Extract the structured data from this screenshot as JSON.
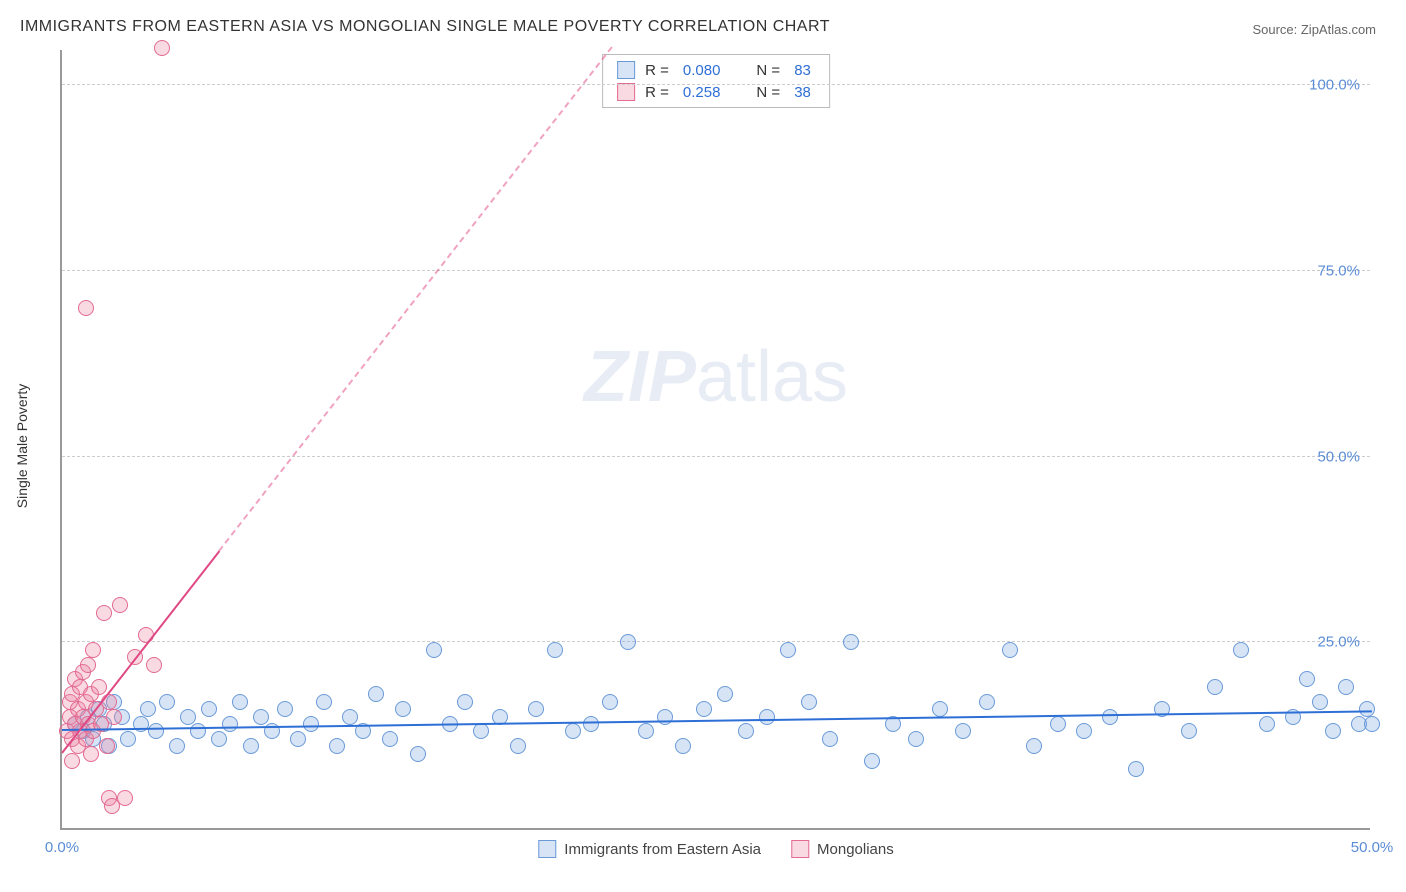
{
  "chart": {
    "type": "scatter",
    "title": "IMMIGRANTS FROM EASTERN ASIA VS MONGOLIAN SINGLE MALE POVERTY CORRELATION CHART",
    "source_label": "Source: ZipAtlas.com",
    "watermark": {
      "prefix": "ZIP",
      "suffix": "atlas"
    },
    "ylabel": "Single Male Poverty",
    "xlim": [
      0,
      50
    ],
    "ylim": [
      0,
      105
    ],
    "xticks": [
      {
        "v": 0,
        "label": "0.0%"
      },
      {
        "v": 50,
        "label": "50.0%"
      }
    ],
    "yticks": [
      {
        "v": 25,
        "label": "25.0%"
      },
      {
        "v": 50,
        "label": "50.0%"
      },
      {
        "v": 75,
        "label": "75.0%"
      },
      {
        "v": 100,
        "label": "100.0%"
      }
    ],
    "background_color": "#ffffff",
    "grid_color": "#cccccc",
    "axis_color": "#999999",
    "ytick_color": "#5b8dd6",
    "marker_radius": 8,
    "series": [
      {
        "name": "Immigrants from Eastern Asia",
        "fill": "rgba(120,165,225,0.30)",
        "stroke": "#6a9ad8",
        "trend_color": "#2e6fd6",
        "trend": {
          "x0": 0,
          "y0": 13,
          "x1": 50,
          "y1": 15.5,
          "dash_from_x": null
        },
        "R": "0.080",
        "N": "83",
        "points": [
          [
            0.5,
            14
          ],
          [
            0.8,
            13
          ],
          [
            1.0,
            15
          ],
          [
            1.2,
            12
          ],
          [
            1.4,
            16
          ],
          [
            1.6,
            14
          ],
          [
            1.8,
            11
          ],
          [
            2.0,
            17
          ],
          [
            2.3,
            15
          ],
          [
            2.5,
            12
          ],
          [
            3.0,
            14
          ],
          [
            3.3,
            16
          ],
          [
            3.6,
            13
          ],
          [
            4.0,
            17
          ],
          [
            4.4,
            11
          ],
          [
            4.8,
            15
          ],
          [
            5.2,
            13
          ],
          [
            5.6,
            16
          ],
          [
            6.0,
            12
          ],
          [
            6.4,
            14
          ],
          [
            6.8,
            17
          ],
          [
            7.2,
            11
          ],
          [
            7.6,
            15
          ],
          [
            8.0,
            13
          ],
          [
            8.5,
            16
          ],
          [
            9.0,
            12
          ],
          [
            9.5,
            14
          ],
          [
            10.0,
            17
          ],
          [
            10.5,
            11
          ],
          [
            11.0,
            15
          ],
          [
            11.5,
            13
          ],
          [
            12.0,
            18
          ],
          [
            12.5,
            12
          ],
          [
            13.0,
            16
          ],
          [
            13.6,
            10
          ],
          [
            14.2,
            24
          ],
          [
            14.8,
            14
          ],
          [
            15.4,
            17
          ],
          [
            16.0,
            13
          ],
          [
            16.7,
            15
          ],
          [
            17.4,
            11
          ],
          [
            18.1,
            16
          ],
          [
            18.8,
            24
          ],
          [
            19.5,
            13
          ],
          [
            20.2,
            14
          ],
          [
            20.9,
            17
          ],
          [
            21.6,
            25
          ],
          [
            22.3,
            13
          ],
          [
            23.0,
            15
          ],
          [
            23.7,
            11
          ],
          [
            24.5,
            16
          ],
          [
            25.3,
            18
          ],
          [
            26.1,
            13
          ],
          [
            26.9,
            15
          ],
          [
            27.7,
            24
          ],
          [
            28.5,
            17
          ],
          [
            29.3,
            12
          ],
          [
            30.1,
            25
          ],
          [
            30.9,
            9
          ],
          [
            31.7,
            14
          ],
          [
            32.6,
            12
          ],
          [
            33.5,
            16
          ],
          [
            34.4,
            13
          ],
          [
            35.3,
            17
          ],
          [
            36.2,
            24
          ],
          [
            37.1,
            11
          ],
          [
            38.0,
            14
          ],
          [
            39.0,
            13
          ],
          [
            40.0,
            15
          ],
          [
            41.0,
            8
          ],
          [
            42.0,
            16
          ],
          [
            43.0,
            13
          ],
          [
            44.0,
            19
          ],
          [
            45.0,
            24
          ],
          [
            46.0,
            14
          ],
          [
            47.0,
            15
          ],
          [
            47.5,
            20
          ],
          [
            48.0,
            17
          ],
          [
            48.5,
            13
          ],
          [
            49.0,
            19
          ],
          [
            49.5,
            14
          ],
          [
            49.8,
            16
          ],
          [
            50.0,
            14
          ]
        ]
      },
      {
        "name": "Mongolians",
        "fill": "rgba(235,130,160,0.30)",
        "stroke": "#e36a92",
        "trend_color": "#e04884",
        "trend": {
          "x0": 0,
          "y0": 10,
          "x1": 21,
          "y1": 105,
          "dash_from_x": 6
        },
        "R": "0.258",
        "N": "38",
        "points": [
          [
            0.2,
            13
          ],
          [
            0.3,
            15
          ],
          [
            0.3,
            17
          ],
          [
            0.4,
            12
          ],
          [
            0.4,
            18
          ],
          [
            0.5,
            14
          ],
          [
            0.5,
            20
          ],
          [
            0.6,
            16
          ],
          [
            0.6,
            11
          ],
          [
            0.7,
            19
          ],
          [
            0.7,
            13
          ],
          [
            0.8,
            21
          ],
          [
            0.8,
            15
          ],
          [
            0.9,
            17
          ],
          [
            0.9,
            12
          ],
          [
            1.0,
            22
          ],
          [
            1.0,
            14
          ],
          [
            1.1,
            18
          ],
          [
            1.1,
            10
          ],
          [
            1.2,
            24
          ],
          [
            1.2,
            13
          ],
          [
            1.3,
            16
          ],
          [
            1.4,
            19
          ],
          [
            1.5,
            14
          ],
          [
            1.6,
            29
          ],
          [
            1.7,
            11
          ],
          [
            1.8,
            4
          ],
          [
            1.8,
            17
          ],
          [
            1.9,
            3
          ],
          [
            2.0,
            15
          ],
          [
            2.2,
            30
          ],
          [
            2.4,
            4
          ],
          [
            2.8,
            23
          ],
          [
            3.2,
            26
          ],
          [
            3.5,
            22
          ],
          [
            0.9,
            70
          ],
          [
            3.8,
            105
          ],
          [
            0.4,
            9
          ]
        ]
      }
    ],
    "stats_legend": {
      "R_label": "R =",
      "N_label": "N ="
    },
    "bottom_legend_labels": [
      "Immigrants from Eastern Asia",
      "Mongolians"
    ]
  }
}
